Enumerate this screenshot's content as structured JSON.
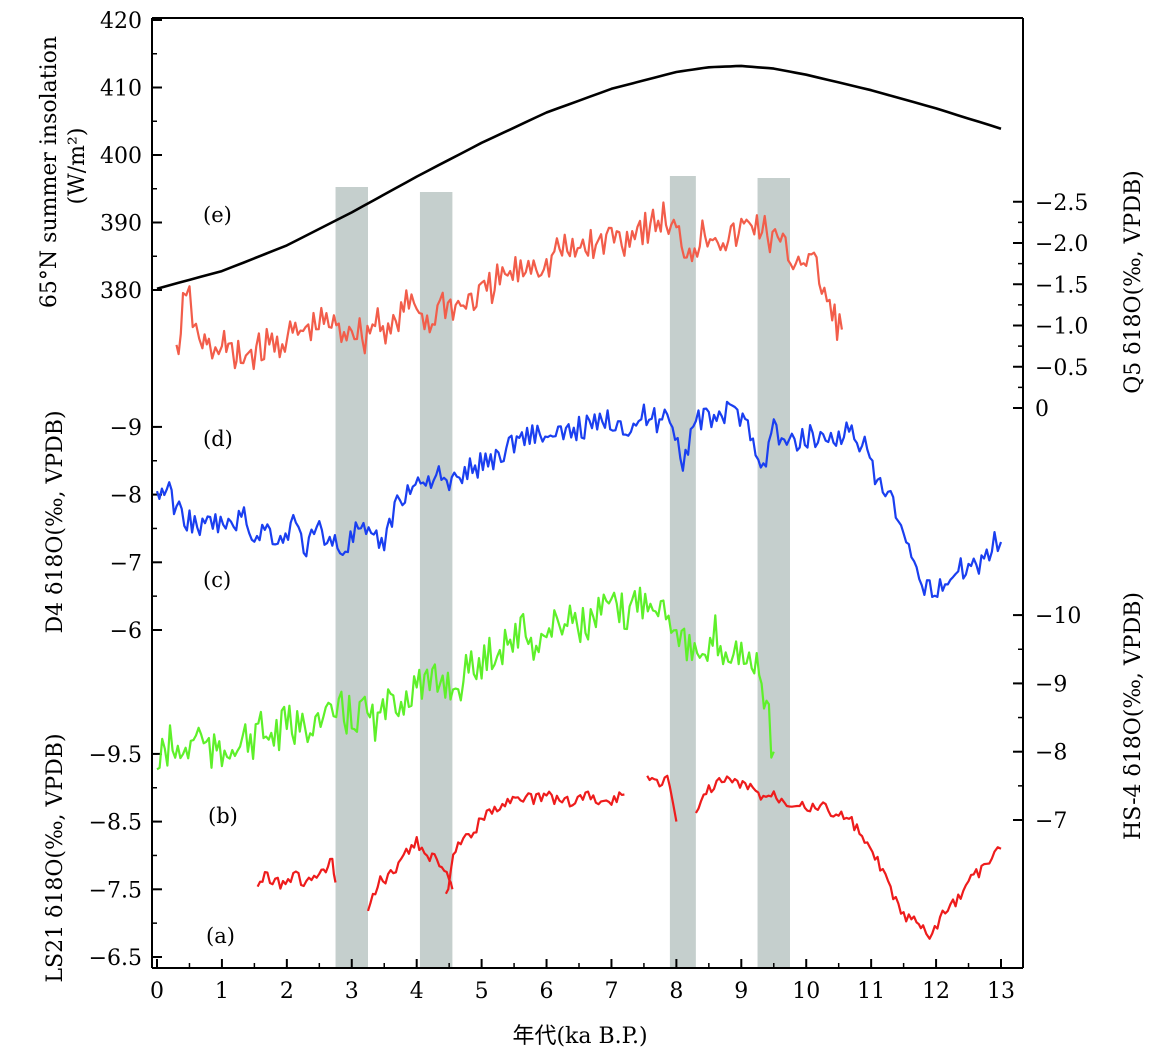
{
  "chart_data": {
    "type": "line",
    "xlabel": "年代(ka B.P.)",
    "xlim": [
      0,
      13
    ],
    "x_ticks": [
      "0",
      "1",
      "2",
      "3",
      "4",
      "5",
      "6",
      "7",
      "8",
      "9",
      "10",
      "11",
      "12",
      "13"
    ],
    "grid": false,
    "legend": "none",
    "shaded_intervals_ka": [
      [
        2.75,
        3.25
      ],
      [
        4.05,
        4.55
      ],
      [
        7.9,
        8.3
      ],
      [
        9.25,
        9.75
      ]
    ],
    "axes": {
      "insolation": {
        "label_line1": "65°N summer insolation",
        "label_line2": "(W/m²)",
        "ylim": [
          380,
          420
        ],
        "ticks": [
          "380",
          "390",
          "400",
          "410",
          "420"
        ]
      },
      "Q5": {
        "label": "Q5 δ18O(‰, VPDB)",
        "ylim": [
          0,
          -2.5
        ],
        "ticks": [
          "0",
          "−0.5",
          "−1.0",
          "−1.5",
          "−2.0",
          "−2.5"
        ]
      },
      "D4": {
        "label": "D4 δ18O(‰, VPDB)",
        "ylim": [
          -6,
          -9
        ],
        "ticks": [
          "−6",
          "−7",
          "−8",
          "−9"
        ]
      },
      "HS4": {
        "label": "HS-4 δ18O(‰, VPDB)",
        "ylim": [
          -7,
          -10
        ],
        "ticks": [
          "−7",
          "−8",
          "−9",
          "−10"
        ]
      },
      "LS21": {
        "label": "LS21 δ18O(‰, VPDB)",
        "ylim": [
          -6.5,
          -9.5
        ],
        "ticks": [
          "−6.5",
          "−7.5",
          "−8.5",
          "−9.5"
        ]
      }
    },
    "panel_labels": [
      "(e)",
      "(d)",
      "(c)",
      "(b)",
      "(a)"
    ],
    "series": [
      {
        "key": "insolation",
        "color": "#000000",
        "axis": "insolation",
        "x": [
          0,
          1,
          2,
          3,
          4,
          5,
          6,
          7,
          8,
          8.5,
          9,
          9.5,
          10,
          11,
          12,
          13
        ],
        "y": [
          380.2,
          382.8,
          386.6,
          391.5,
          396.8,
          401.8,
          406.3,
          409.8,
          412.3,
          413.0,
          413.2,
          412.8,
          411.9,
          409.6,
          406.9,
          403.9
        ]
      },
      {
        "key": "Q5",
        "color": "#f25d4a",
        "axis": "Q5",
        "x": [
          0.3,
          0.4,
          0.5,
          0.6,
          0.7,
          0.8,
          0.9,
          1.0,
          1.1,
          1.2,
          1.25,
          2.65,
          2.8,
          3.0,
          3.2,
          3.4,
          3.6,
          3.8,
          4.0,
          4.2,
          4.4,
          4.6,
          4.8,
          5.0,
          5.2,
          5.4,
          5.6,
          5.8,
          6.0,
          6.2,
          6.4,
          6.6,
          6.8,
          7.0,
          7.2,
          7.4,
          7.6,
          7.8,
          8.0,
          8.2,
          8.4,
          8.6,
          8.8,
          9.0,
          9.2,
          9.4,
          9.6,
          9.8,
          10.0,
          10.2,
          10.4,
          10.55
        ],
        "y": [
          -0.6,
          -1.2,
          -1.3,
          -0.9,
          -0.8,
          -0.7,
          -0.6,
          -0.9,
          -0.7,
          -0.5,
          -0.6,
          -1.05,
          -0.9,
          -1.0,
          -0.85,
          -1.1,
          -0.9,
          -1.2,
          -1.25,
          -1.0,
          -1.3,
          -1.2,
          -1.3,
          -1.35,
          -1.5,
          -1.6,
          -1.65,
          -1.8,
          -1.7,
          -1.95,
          -1.85,
          -2.0,
          -1.95,
          -2.1,
          -2.05,
          -2.2,
          -2.2,
          -2.3,
          -2.1,
          -1.9,
          -2.1,
          -2.15,
          -2.0,
          -2.15,
          -2.25,
          -2.1,
          -1.95,
          -1.8,
          -1.85,
          -1.6,
          -1.1,
          -0.95
        ]
      },
      {
        "key": "D4",
        "color": "#1a3ff0",
        "axis": "D4",
        "x": [
          0.0,
          0.15,
          0.3,
          0.5,
          0.7,
          0.9,
          1.1,
          1.3,
          1.5,
          1.7,
          1.9,
          2.1,
          2.3,
          2.5,
          2.7,
          2.9,
          3.1,
          3.3,
          3.5,
          3.7,
          3.9,
          4.1,
          4.3,
          4.5,
          4.7,
          4.9,
          5.1,
          5.3,
          5.5,
          5.7,
          5.9,
          6.1,
          6.3,
          6.5,
          6.7,
          6.9,
          7.1,
          7.3,
          7.5,
          7.7,
          7.9,
          8.1,
          8.3,
          8.5,
          8.7,
          8.9,
          9.1,
          9.3,
          9.5,
          9.7,
          9.9,
          10.1,
          10.3,
          10.5,
          10.7,
          10.9,
          11.1,
          11.3,
          11.5,
          11.7,
          11.9,
          12.1,
          12.3,
          12.5,
          12.7,
          12.9,
          13.0
        ],
        "y": [
          -8.0,
          -8.1,
          -7.8,
          -7.6,
          -7.5,
          -7.6,
          -7.5,
          -7.7,
          -7.4,
          -7.5,
          -7.3,
          -7.6,
          -7.2,
          -7.5,
          -7.3,
          -7.2,
          -7.5,
          -7.3,
          -7.3,
          -7.9,
          -8.1,
          -8.2,
          -8.3,
          -8.1,
          -8.3,
          -8.4,
          -8.5,
          -8.6,
          -8.8,
          -8.9,
          -8.9,
          -8.8,
          -8.9,
          -9.0,
          -9.0,
          -9.1,
          -9.1,
          -9.0,
          -9.15,
          -9.1,
          -9.2,
          -8.5,
          -9.1,
          -9.1,
          -9.2,
          -9.2,
          -9.15,
          -8.3,
          -9.0,
          -8.7,
          -8.8,
          -8.9,
          -8.8,
          -8.9,
          -8.9,
          -8.7,
          -8.1,
          -8.0,
          -7.3,
          -6.8,
          -6.6,
          -6.7,
          -6.8,
          -7.0,
          -7.0,
          -7.3,
          -7.3
        ]
      },
      {
        "key": "HS4",
        "color": "#5ef02a",
        "axis": "HS4",
        "x": [
          0.0,
          0.2,
          0.4,
          0.6,
          0.8,
          1.0,
          1.2,
          1.4,
          1.6,
          1.8,
          2.0,
          2.2,
          2.4,
          2.6,
          2.8,
          3.0,
          3.2,
          3.4,
          3.6,
          3.8,
          4.0,
          4.2,
          4.4,
          4.6,
          4.8,
          5.0,
          5.2,
          5.4,
          5.6,
          5.8,
          6.0,
          6.2,
          6.4,
          6.6,
          6.8,
          7.0,
          7.2,
          7.4,
          7.6,
          7.8,
          8.0,
          8.2,
          8.4,
          8.6,
          8.8,
          9.0,
          9.2,
          9.35,
          9.5
        ],
        "y": [
          -7.8,
          -8.1,
          -7.9,
          -8.3,
          -8.0,
          -7.9,
          -8.2,
          -8.1,
          -8.3,
          -8.2,
          -8.4,
          -8.3,
          -8.5,
          -8.4,
          -8.6,
          -8.5,
          -8.6,
          -8.4,
          -8.7,
          -8.8,
          -9.0,
          -8.9,
          -9.1,
          -8.9,
          -9.2,
          -9.3,
          -9.5,
          -9.6,
          -9.8,
          -9.6,
          -9.7,
          -9.9,
          -10.0,
          -9.8,
          -10.0,
          -10.1,
          -10.0,
          -10.2,
          -10.3,
          -10.1,
          -9.9,
          -9.5,
          -9.2,
          -9.7,
          -9.4,
          -9.5,
          -9.3,
          -8.8,
          -8.0
        ]
      },
      {
        "key": "LS21",
        "color": "#ee1c1c",
        "axis": "LS21",
        "x": [
          1.55,
          1.7,
          1.9,
          2.1,
          2.3,
          2.5,
          2.6,
          2.7,
          2.75,
          null,
          3.25,
          3.4,
          3.6,
          3.8,
          4.0,
          4.2,
          4.35,
          4.5,
          4.55,
          null,
          4.45,
          4.6,
          4.8,
          5.0,
          5.2,
          5.4,
          5.6,
          5.8,
          6.0,
          6.2,
          6.4,
          6.6,
          6.8,
          7.0,
          7.2,
          null,
          7.55,
          7.7,
          7.9,
          8.0,
          null,
          8.3,
          8.5,
          8.7,
          8.9,
          9.1,
          9.3,
          9.5,
          9.7,
          9.9,
          10.1,
          10.3,
          10.5,
          10.7,
          10.9,
          11.1,
          11.3,
          11.5,
          11.7,
          11.8,
          11.9,
          12.1,
          12.3,
          12.5,
          12.7,
          12.9,
          13.0
        ],
        "y": [
          -7.6,
          -7.7,
          -7.6,
          -7.7,
          -7.6,
          -7.7,
          -7.8,
          -7.9,
          -7.6,
          null,
          -7.1,
          -7.6,
          -7.7,
          -8.0,
          -8.2,
          -8.0,
          -7.9,
          -7.6,
          -7.5,
          null,
          -7.4,
          -8.1,
          -8.3,
          -8.5,
          -8.7,
          -8.8,
          -8.9,
          -8.8,
          -8.9,
          -8.8,
          -8.8,
          -8.9,
          -8.8,
          -8.8,
          -8.9,
          null,
          -9.2,
          -9.1,
          -9.1,
          -8.5,
          null,
          -8.6,
          -9.0,
          -9.1,
          -9.1,
          -9.0,
          -8.9,
          -8.9,
          -8.8,
          -8.8,
          -8.7,
          -8.7,
          -8.6,
          -8.5,
          -8.2,
          -7.9,
          -7.5,
          -7.1,
          -7.0,
          -6.9,
          -6.8,
          -7.1,
          -7.3,
          -7.6,
          -7.8,
          -8.0,
          -8.1
        ]
      }
    ]
  }
}
